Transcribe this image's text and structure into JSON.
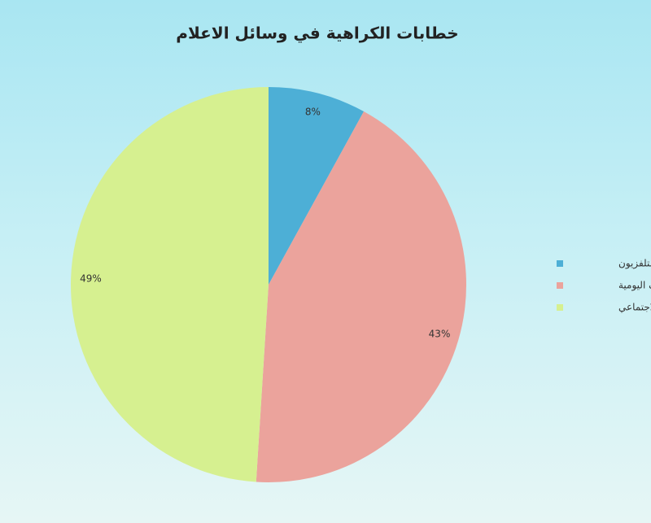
{
  "chart_data": {
    "type": "pie",
    "title": "خطابات الكراهية في وسائل الاعلام",
    "categories": [
      "التلفزيون",
      "الصحف اليومية",
      "التواصل الاجتماعي"
    ],
    "values": [
      8,
      43,
      49
    ],
    "value_labels": [
      "8%",
      "43%",
      "49%"
    ],
    "colors": [
      "#4dafd6",
      "#eba39c",
      "#d6f090"
    ],
    "legend": "right"
  }
}
